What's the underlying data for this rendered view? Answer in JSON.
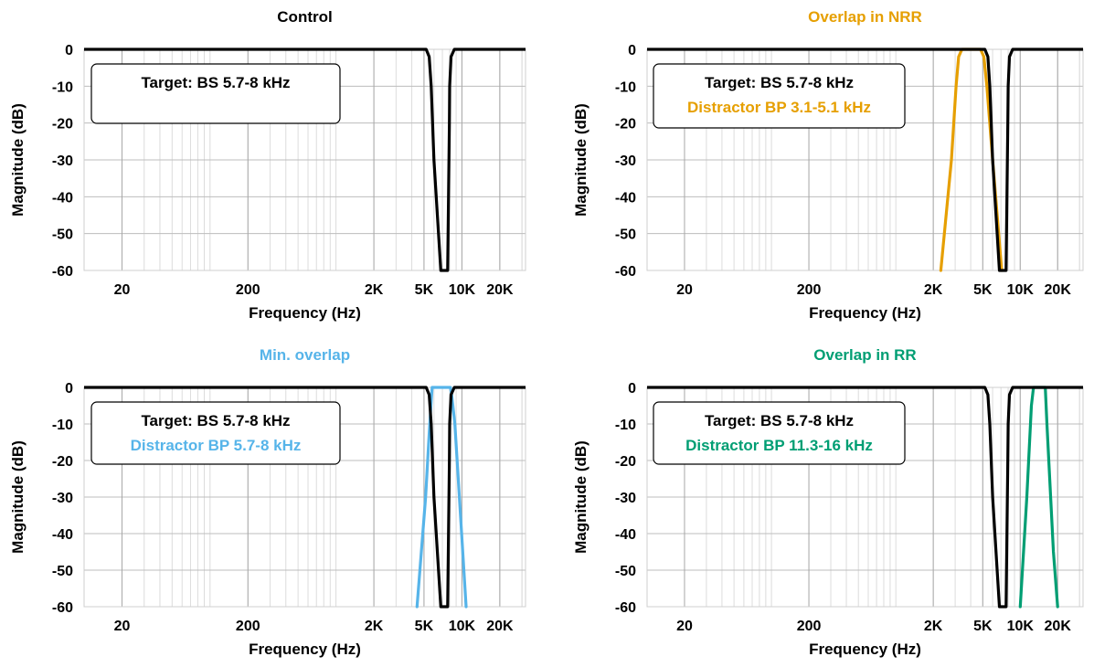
{
  "figure": {
    "panels": [
      {
        "title": "Control",
        "title_color": "#000000",
        "xlabel": "Frequency (Hz)",
        "ylabel": "Magnitude (dB)",
        "legend_lines": [
          {
            "text": "Target: BS 5.7-8 kHz",
            "color": "#000000"
          }
        ]
      },
      {
        "title": "Overlap in NRR",
        "title_color": "#E69F00",
        "xlabel": "Frequency (Hz)",
        "ylabel": "Magnitude (dB)",
        "legend_lines": [
          {
            "text": "Target: BS 5.7-8 kHz",
            "color": "#000000"
          },
          {
            "text": "Distractor BP 3.1-5.1 kHz",
            "color": "#E69F00"
          }
        ]
      },
      {
        "title": "Min. overlap",
        "title_color": "#56B4E9",
        "xlabel": "Frequency (Hz)",
        "ylabel": "Magnitude (dB)",
        "legend_lines": [
          {
            "text": "Target: BS 5.7-8 kHz",
            "color": "#000000"
          },
          {
            "text": "Distractor BP 5.7-8 kHz",
            "color": "#56B4E9"
          }
        ]
      },
      {
        "title": "Overlap in RR",
        "title_color": "#009E73",
        "xlabel": "Frequency (Hz)",
        "ylabel": "Magnitude (dB)",
        "legend_lines": [
          {
            "text": "Target: BS 5.7-8 kHz",
            "color": "#000000"
          },
          {
            "text": "Distractor BP 11.3-16 kHz",
            "color": "#009E73"
          }
        ]
      }
    ]
  },
  "chart_data": [
    {
      "type": "line",
      "title": "Control",
      "xlabel": "Frequency (Hz)",
      "ylabel": "Magnitude (dB)",
      "x_scale": "log",
      "xlim": [
        10,
        32000
      ],
      "ylim": [
        -60,
        0
      ],
      "xticks": [
        20,
        200,
        2000,
        5000,
        10000,
        20000
      ],
      "xtick_labels": [
        "20",
        "200",
        "2K",
        "5K",
        "10K",
        "20K"
      ],
      "yticks": [
        0,
        -10,
        -20,
        -30,
        -40,
        -50,
        -60
      ],
      "grid": true,
      "series": [
        {
          "name": "Target: BS 5.7-8 kHz",
          "color": "#000000",
          "x": [
            10,
            5200,
            5500,
            5700,
            6000,
            6800,
            7200,
            7700,
            7950,
            8000,
            8200,
            8700,
            32000
          ],
          "y": [
            0,
            0,
            -2,
            -10,
            -30,
            -60,
            -60,
            -60,
            -20,
            -10,
            -2,
            0,
            0
          ]
        }
      ]
    },
    {
      "type": "line",
      "title": "Overlap in NRR",
      "xlabel": "Frequency (Hz)",
      "ylabel": "Magnitude (dB)",
      "x_scale": "log",
      "xlim": [
        10,
        32000
      ],
      "ylim": [
        -60,
        0
      ],
      "xticks": [
        20,
        200,
        2000,
        5000,
        10000,
        20000
      ],
      "xtick_labels": [
        "20",
        "200",
        "2K",
        "5K",
        "10K",
        "20K"
      ],
      "yticks": [
        0,
        -10,
        -20,
        -30,
        -40,
        -50,
        -60
      ],
      "grid": true,
      "series": [
        {
          "name": "Target: BS 5.7-8 kHz",
          "color": "#000000",
          "x": [
            10,
            5200,
            5500,
            5700,
            6000,
            6800,
            7200,
            7700,
            7950,
            8000,
            8200,
            8700,
            32000
          ],
          "y": [
            0,
            0,
            -2,
            -10,
            -30,
            -60,
            -60,
            -60,
            -20,
            -10,
            -2,
            0,
            0
          ]
        },
        {
          "name": "Distractor BP 3.1-5.1 kHz",
          "color": "#E69F00",
          "x": [
            2300,
            2800,
            3050,
            3200,
            3400,
            4800,
            5100,
            5400,
            6000,
            7100
          ],
          "y": [
            -60,
            -30,
            -10,
            -2,
            0,
            0,
            -2,
            -10,
            -30,
            -60
          ]
        }
      ]
    },
    {
      "type": "line",
      "title": "Min. overlap",
      "xlabel": "Frequency (Hz)",
      "ylabel": "Magnitude (dB)",
      "x_scale": "log",
      "xlim": [
        10,
        32000
      ],
      "ylim": [
        -60,
        0
      ],
      "xticks": [
        20,
        200,
        2000,
        5000,
        10000,
        20000
      ],
      "xtick_labels": [
        "20",
        "200",
        "2K",
        "5K",
        "10K",
        "20K"
      ],
      "yticks": [
        0,
        -10,
        -20,
        -30,
        -40,
        -50,
        -60
      ],
      "grid": true,
      "series": [
        {
          "name": "Target: BS 5.7-8 kHz",
          "color": "#000000",
          "x": [
            10,
            5200,
            5500,
            5700,
            6000,
            6800,
            7200,
            7700,
            7950,
            8000,
            8200,
            8700,
            32000
          ],
          "y": [
            0,
            0,
            -2,
            -10,
            -30,
            -60,
            -60,
            -60,
            -20,
            -10,
            -2,
            0,
            0
          ]
        },
        {
          "name": "Distractor BP 5.7-8 kHz",
          "color": "#56B4E9",
          "x": [
            4400,
            5150,
            5550,
            5800,
            8100,
            8300,
            8800,
            10800
          ],
          "y": [
            -60,
            -30,
            -10,
            0,
            0,
            -2,
            -10,
            -60
          ]
        }
      ]
    },
    {
      "type": "line",
      "title": "Overlap in RR",
      "xlabel": "Frequency (Hz)",
      "ylabel": "Magnitude (dB)",
      "x_scale": "log",
      "xlim": [
        10,
        32000
      ],
      "ylim": [
        -60,
        0
      ],
      "xticks": [
        20,
        200,
        2000,
        5000,
        10000,
        20000
      ],
      "xtick_labels": [
        "20",
        "200",
        "2K",
        "5K",
        "10K",
        "20K"
      ],
      "yticks": [
        0,
        -10,
        -20,
        -30,
        -40,
        -50,
        -60
      ],
      "grid": true,
      "series": [
        {
          "name": "Target: BS 5.7-8 kHz",
          "color": "#000000",
          "x": [
            10,
            5200,
            5500,
            5700,
            6000,
            6800,
            7200,
            7700,
            7950,
            8000,
            8200,
            8700,
            32000
          ],
          "y": [
            0,
            0,
            -2,
            -10,
            -30,
            -60,
            -60,
            -60,
            -20,
            -10,
            -2,
            0,
            0
          ]
        },
        {
          "name": "Distractor BP 11.3-16 kHz",
          "color": "#009E73",
          "x": [
            10000,
            11300,
            12300,
            12800,
            15900,
            16400,
            18500,
            20000
          ],
          "y": [
            -60,
            -30,
            -5,
            0,
            0,
            -10,
            -45,
            -60
          ]
        }
      ]
    }
  ]
}
